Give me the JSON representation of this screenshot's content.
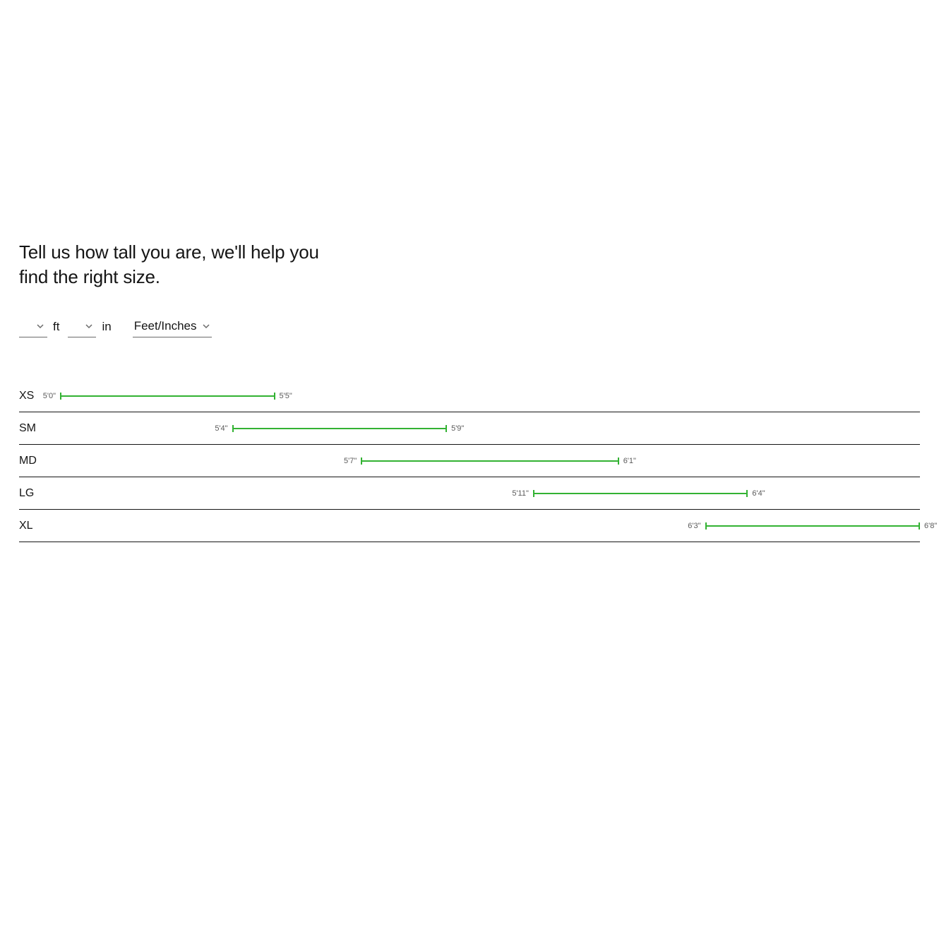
{
  "heading": "Tell us how tall you are, we'll help you find the right size.",
  "inputs": {
    "feet_value": "",
    "feet_unit": "ft",
    "inches_value": "",
    "inches_unit": "in",
    "system_value": "Feet/Inches"
  },
  "chart": {
    "bar_color": "#33b233",
    "label_color": "#5a5a5a",
    "divider_color": "#151515",
    "total_inches_min": 60,
    "total_inches_max": 80
  },
  "sizes": [
    {
      "code": "XS",
      "min_label": "5'0\"",
      "max_label": "5'5\"",
      "min_in": 60,
      "max_in": 65
    },
    {
      "code": "SM",
      "min_label": "5'4\"",
      "max_label": "5'9\"",
      "min_in": 64,
      "max_in": 69
    },
    {
      "code": "MD",
      "min_label": "5'7\"",
      "max_label": "6'1\"",
      "min_in": 67,
      "max_in": 73
    },
    {
      "code": "LG",
      "min_label": "5'11\"",
      "max_label": "6'4\"",
      "min_in": 71,
      "max_in": 76
    },
    {
      "code": "XL",
      "min_label": "6'3\"",
      "max_label": "6'8\"",
      "min_in": 75,
      "max_in": 80
    }
  ]
}
